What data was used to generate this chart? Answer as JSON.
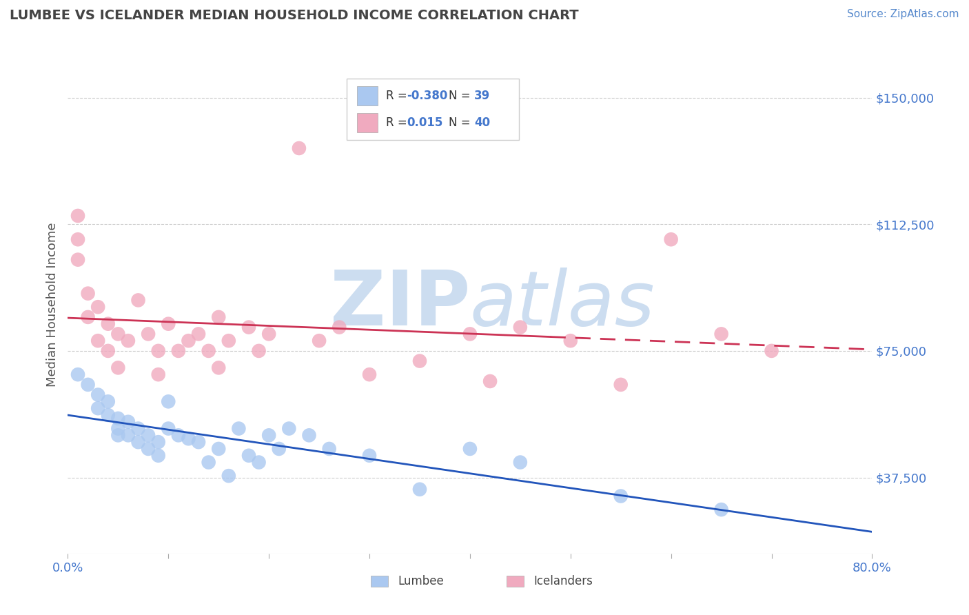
{
  "title": "LUMBEE VS ICELANDER MEDIAN HOUSEHOLD INCOME CORRELATION CHART",
  "source_text": "Source: ZipAtlas.com",
  "ylabel": "Median Household Income",
  "xlim": [
    0.0,
    0.8
  ],
  "ylim": [
    15000,
    162500
  ],
  "yticks": [
    37500,
    75000,
    112500,
    150000
  ],
  "ytick_labels": [
    "$37,500",
    "$75,000",
    "$112,500",
    "$150,000"
  ],
  "xticks": [
    0.0,
    0.1,
    0.2,
    0.3,
    0.4,
    0.5,
    0.6,
    0.7,
    0.8
  ],
  "xtick_labels": [
    "0.0%",
    "",
    "",
    "",
    "",
    "",
    "",
    "",
    "80.0%"
  ],
  "legend_blue_r": "-0.380",
  "legend_blue_n": "39",
  "legend_pink_r": "0.015",
  "legend_pink_n": "40",
  "blue_color": "#aac8f0",
  "pink_color": "#f0aabf",
  "blue_line_color": "#2255bb",
  "pink_line_color": "#cc3355",
  "title_color": "#444444",
  "source_color": "#5588cc",
  "axis_label_color": "#555555",
  "tick_label_color": "#4477cc",
  "grid_color": "#cccccc",
  "watermark_color": "#ccddf0",
  "lumbee_x": [
    0.01,
    0.02,
    0.03,
    0.03,
    0.04,
    0.04,
    0.05,
    0.05,
    0.05,
    0.06,
    0.06,
    0.07,
    0.07,
    0.08,
    0.08,
    0.09,
    0.09,
    0.1,
    0.1,
    0.11,
    0.12,
    0.13,
    0.14,
    0.15,
    0.16,
    0.17,
    0.18,
    0.19,
    0.2,
    0.21,
    0.22,
    0.24,
    0.26,
    0.3,
    0.35,
    0.4,
    0.45,
    0.55,
    0.65
  ],
  "lumbee_y": [
    68000,
    65000,
    62000,
    58000,
    60000,
    56000,
    55000,
    52000,
    50000,
    54000,
    50000,
    52000,
    48000,
    50000,
    46000,
    48000,
    44000,
    60000,
    52000,
    50000,
    49000,
    48000,
    42000,
    46000,
    38000,
    52000,
    44000,
    42000,
    50000,
    46000,
    52000,
    50000,
    46000,
    44000,
    34000,
    46000,
    42000,
    32000,
    28000
  ],
  "icelander_x": [
    0.01,
    0.01,
    0.01,
    0.02,
    0.02,
    0.03,
    0.03,
    0.04,
    0.04,
    0.05,
    0.05,
    0.06,
    0.07,
    0.08,
    0.09,
    0.09,
    0.1,
    0.11,
    0.12,
    0.13,
    0.14,
    0.15,
    0.15,
    0.16,
    0.18,
    0.19,
    0.2,
    0.23,
    0.25,
    0.27,
    0.3,
    0.35,
    0.4,
    0.42,
    0.45,
    0.5,
    0.55,
    0.6,
    0.65,
    0.7
  ],
  "icelander_y": [
    115000,
    108000,
    102000,
    92000,
    85000,
    88000,
    78000,
    83000,
    75000,
    80000,
    70000,
    78000,
    90000,
    80000,
    75000,
    68000,
    83000,
    75000,
    78000,
    80000,
    75000,
    70000,
    85000,
    78000,
    82000,
    75000,
    80000,
    135000,
    78000,
    82000,
    68000,
    72000,
    80000,
    66000,
    82000,
    78000,
    65000,
    108000,
    80000,
    75000
  ]
}
